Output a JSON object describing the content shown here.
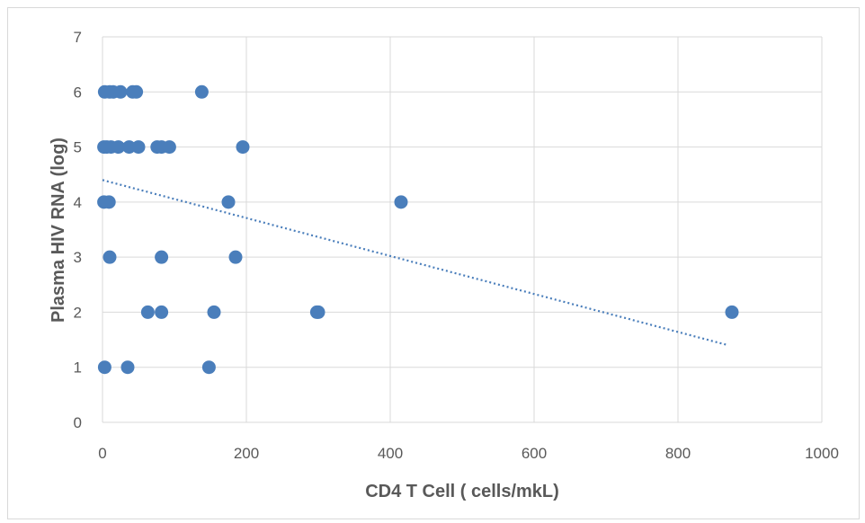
{
  "chart_data": {
    "type": "scatter",
    "xlabel": "CD4 T Cell ( cells/mkL)",
    "ylabel": "Plasma HIV RNA (log)",
    "xlim": [
      0,
      1000
    ],
    "ylim": [
      0,
      7
    ],
    "x_ticks": [
      0,
      200,
      400,
      600,
      800,
      1000
    ],
    "y_ticks": [
      0,
      1,
      2,
      3,
      4,
      5,
      6,
      7
    ],
    "grid": true,
    "legend": "none",
    "marker_color": "#4a7ebb",
    "trendline": {
      "style": "dotted",
      "color": "#4a7ebb",
      "x": [
        0,
        870
      ],
      "y": [
        4.4,
        1.4
      ]
    },
    "points": [
      {
        "x": 3,
        "y": 6
      },
      {
        "x": 10,
        "y": 6
      },
      {
        "x": 15,
        "y": 6
      },
      {
        "x": 25,
        "y": 6
      },
      {
        "x": 42,
        "y": 6
      },
      {
        "x": 47,
        "y": 6
      },
      {
        "x": 138,
        "y": 6
      },
      {
        "x": 2,
        "y": 5
      },
      {
        "x": 6,
        "y": 5
      },
      {
        "x": 12,
        "y": 5
      },
      {
        "x": 22,
        "y": 5
      },
      {
        "x": 37,
        "y": 5
      },
      {
        "x": 50,
        "y": 5
      },
      {
        "x": 76,
        "y": 5
      },
      {
        "x": 82,
        "y": 5
      },
      {
        "x": 93,
        "y": 5
      },
      {
        "x": 195,
        "y": 5
      },
      {
        "x": 2,
        "y": 4
      },
      {
        "x": 9,
        "y": 4
      },
      {
        "x": 175,
        "y": 4
      },
      {
        "x": 415,
        "y": 4
      },
      {
        "x": 10,
        "y": 3
      },
      {
        "x": 82,
        "y": 3
      },
      {
        "x": 185,
        "y": 3
      },
      {
        "x": 63,
        "y": 2
      },
      {
        "x": 82,
        "y": 2
      },
      {
        "x": 155,
        "y": 2
      },
      {
        "x": 298,
        "y": 2
      },
      {
        "x": 300,
        "y": 2
      },
      {
        "x": 875,
        "y": 2
      },
      {
        "x": 3,
        "y": 1
      },
      {
        "x": 35,
        "y": 1
      },
      {
        "x": 148,
        "y": 1
      }
    ]
  }
}
